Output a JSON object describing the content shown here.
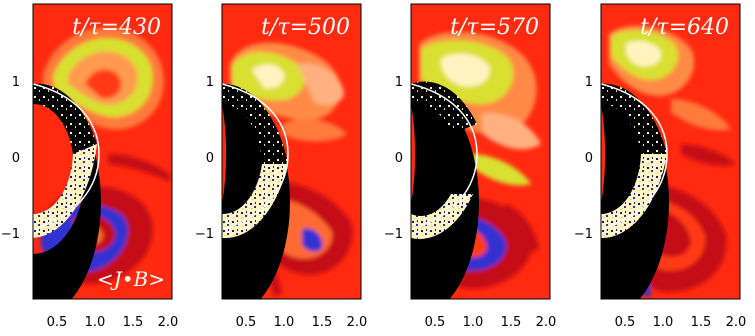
{
  "panels": [
    {
      "time_label": "t/τ=430",
      "annotation": "<J•B>"
    },
    {
      "time_label": "t/τ=500",
      "annotation": ""
    },
    {
      "time_label": "t/τ=570",
      "annotation": ""
    },
    {
      "time_label": "t/τ=640",
      "annotation": ""
    }
  ],
  "x_ticks": [
    "0.5",
    "1.0",
    "1.5",
    "2.0"
  ],
  "y_ticks": [
    "1",
    "0",
    "−1"
  ],
  "colors": {
    "background": "#ff2a10",
    "dark_red": "#c40f18",
    "orange": "#ff7a3a",
    "peach": "#ffb080",
    "yellow_green": "#d8e030",
    "cream": "#fff4c0",
    "blue": "#3030d0",
    "navy": "#10106a",
    "disk": "#000000",
    "limb_line": "#ffffff"
  }
}
